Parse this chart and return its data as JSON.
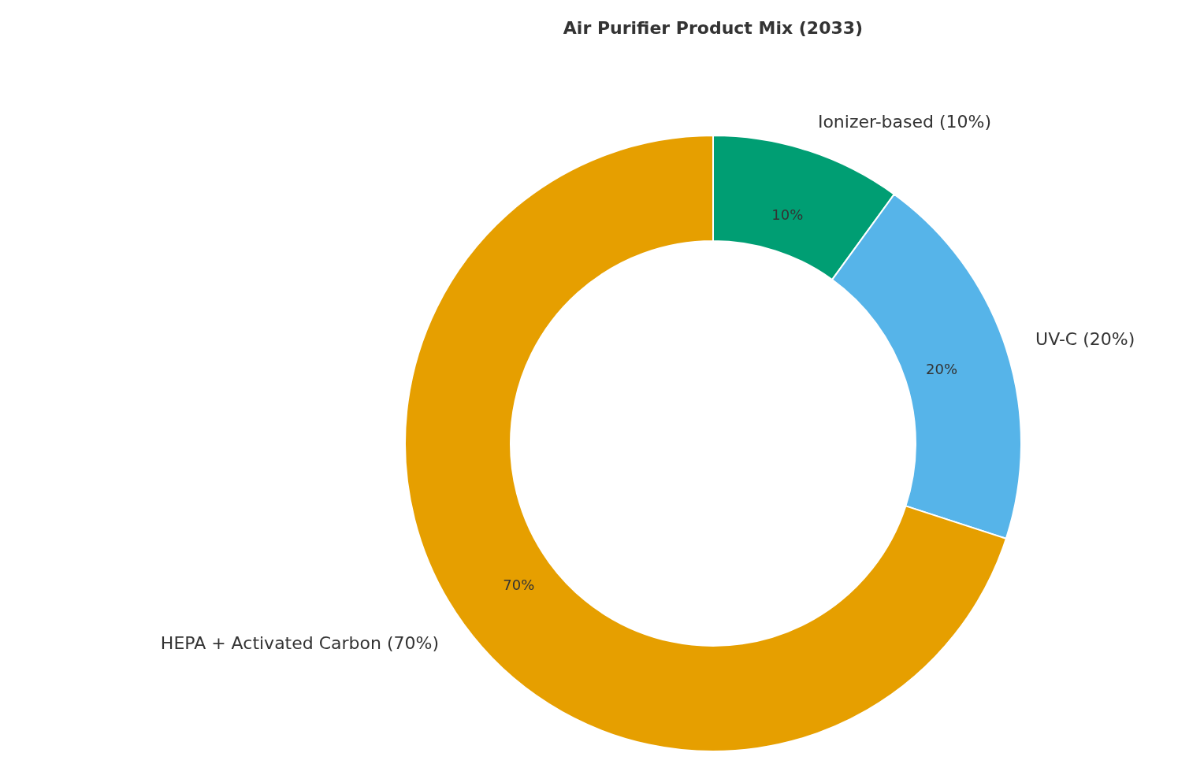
{
  "chart_data": {
    "type": "donut",
    "title": "Air Purifier Product Mix (2033)",
    "categories": [
      "Ionizer-based (10%)",
      "UV-C (20%)",
      "HEPA + Activated Carbon (70%)"
    ],
    "values": [
      10,
      20,
      70
    ],
    "colors": [
      "#009e73",
      "#56b4e9",
      "#e69f00"
    ],
    "value_labels": [
      "10%",
      "20%",
      "70%"
    ],
    "legend": false
  }
}
